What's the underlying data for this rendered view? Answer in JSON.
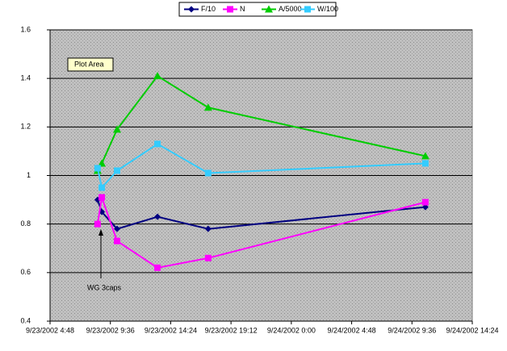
{
  "chart_data": {
    "type": "line",
    "x": [
      "9/23/2002 8:35",
      "9/23/2002 8:55",
      "9/23/2002 10:08",
      "9/23/2002 13:21",
      "9/23/2002 17:23",
      "9/24/2002 10:40"
    ],
    "series": [
      {
        "name": "F/10",
        "color": "#000080",
        "marker": "diamond",
        "values": [
          0.9,
          0.85,
          0.78,
          0.83,
          0.78,
          0.87
        ]
      },
      {
        "name": "N",
        "color": "#ff00ff",
        "marker": "square",
        "values": [
          0.8,
          0.91,
          0.73,
          0.62,
          0.66,
          0.89
        ]
      },
      {
        "name": "A/5000",
        "color": "#00cc00",
        "marker": "triangle",
        "values": [
          1.02,
          1.05,
          1.19,
          1.41,
          1.28,
          1.08
        ]
      },
      {
        "name": "W/100",
        "color": "#33ccff",
        "marker": "square",
        "values": [
          1.03,
          0.95,
          1.02,
          1.13,
          1.01,
          1.05
        ]
      }
    ],
    "xlim": [
      "9/23/2002 4:48",
      "9/24/2002 14:24"
    ],
    "xticks": [
      "9/23/2002 4:48",
      "9/23/2002 9:36",
      "9/23/2002 14:24",
      "9/23/2002 19:12",
      "9/24/2002 0:00",
      "9/24/2002 4:48",
      "9/24/2002 9:36",
      "9/24/2002 14:24"
    ],
    "ylim": [
      0.4,
      1.6
    ],
    "yticks": [
      0.4,
      0.6,
      0.8,
      1,
      1.2,
      1.4,
      1.6
    ],
    "grid": true,
    "legend": "top",
    "annotations": [
      "Plot Area",
      "WG 3caps"
    ]
  }
}
